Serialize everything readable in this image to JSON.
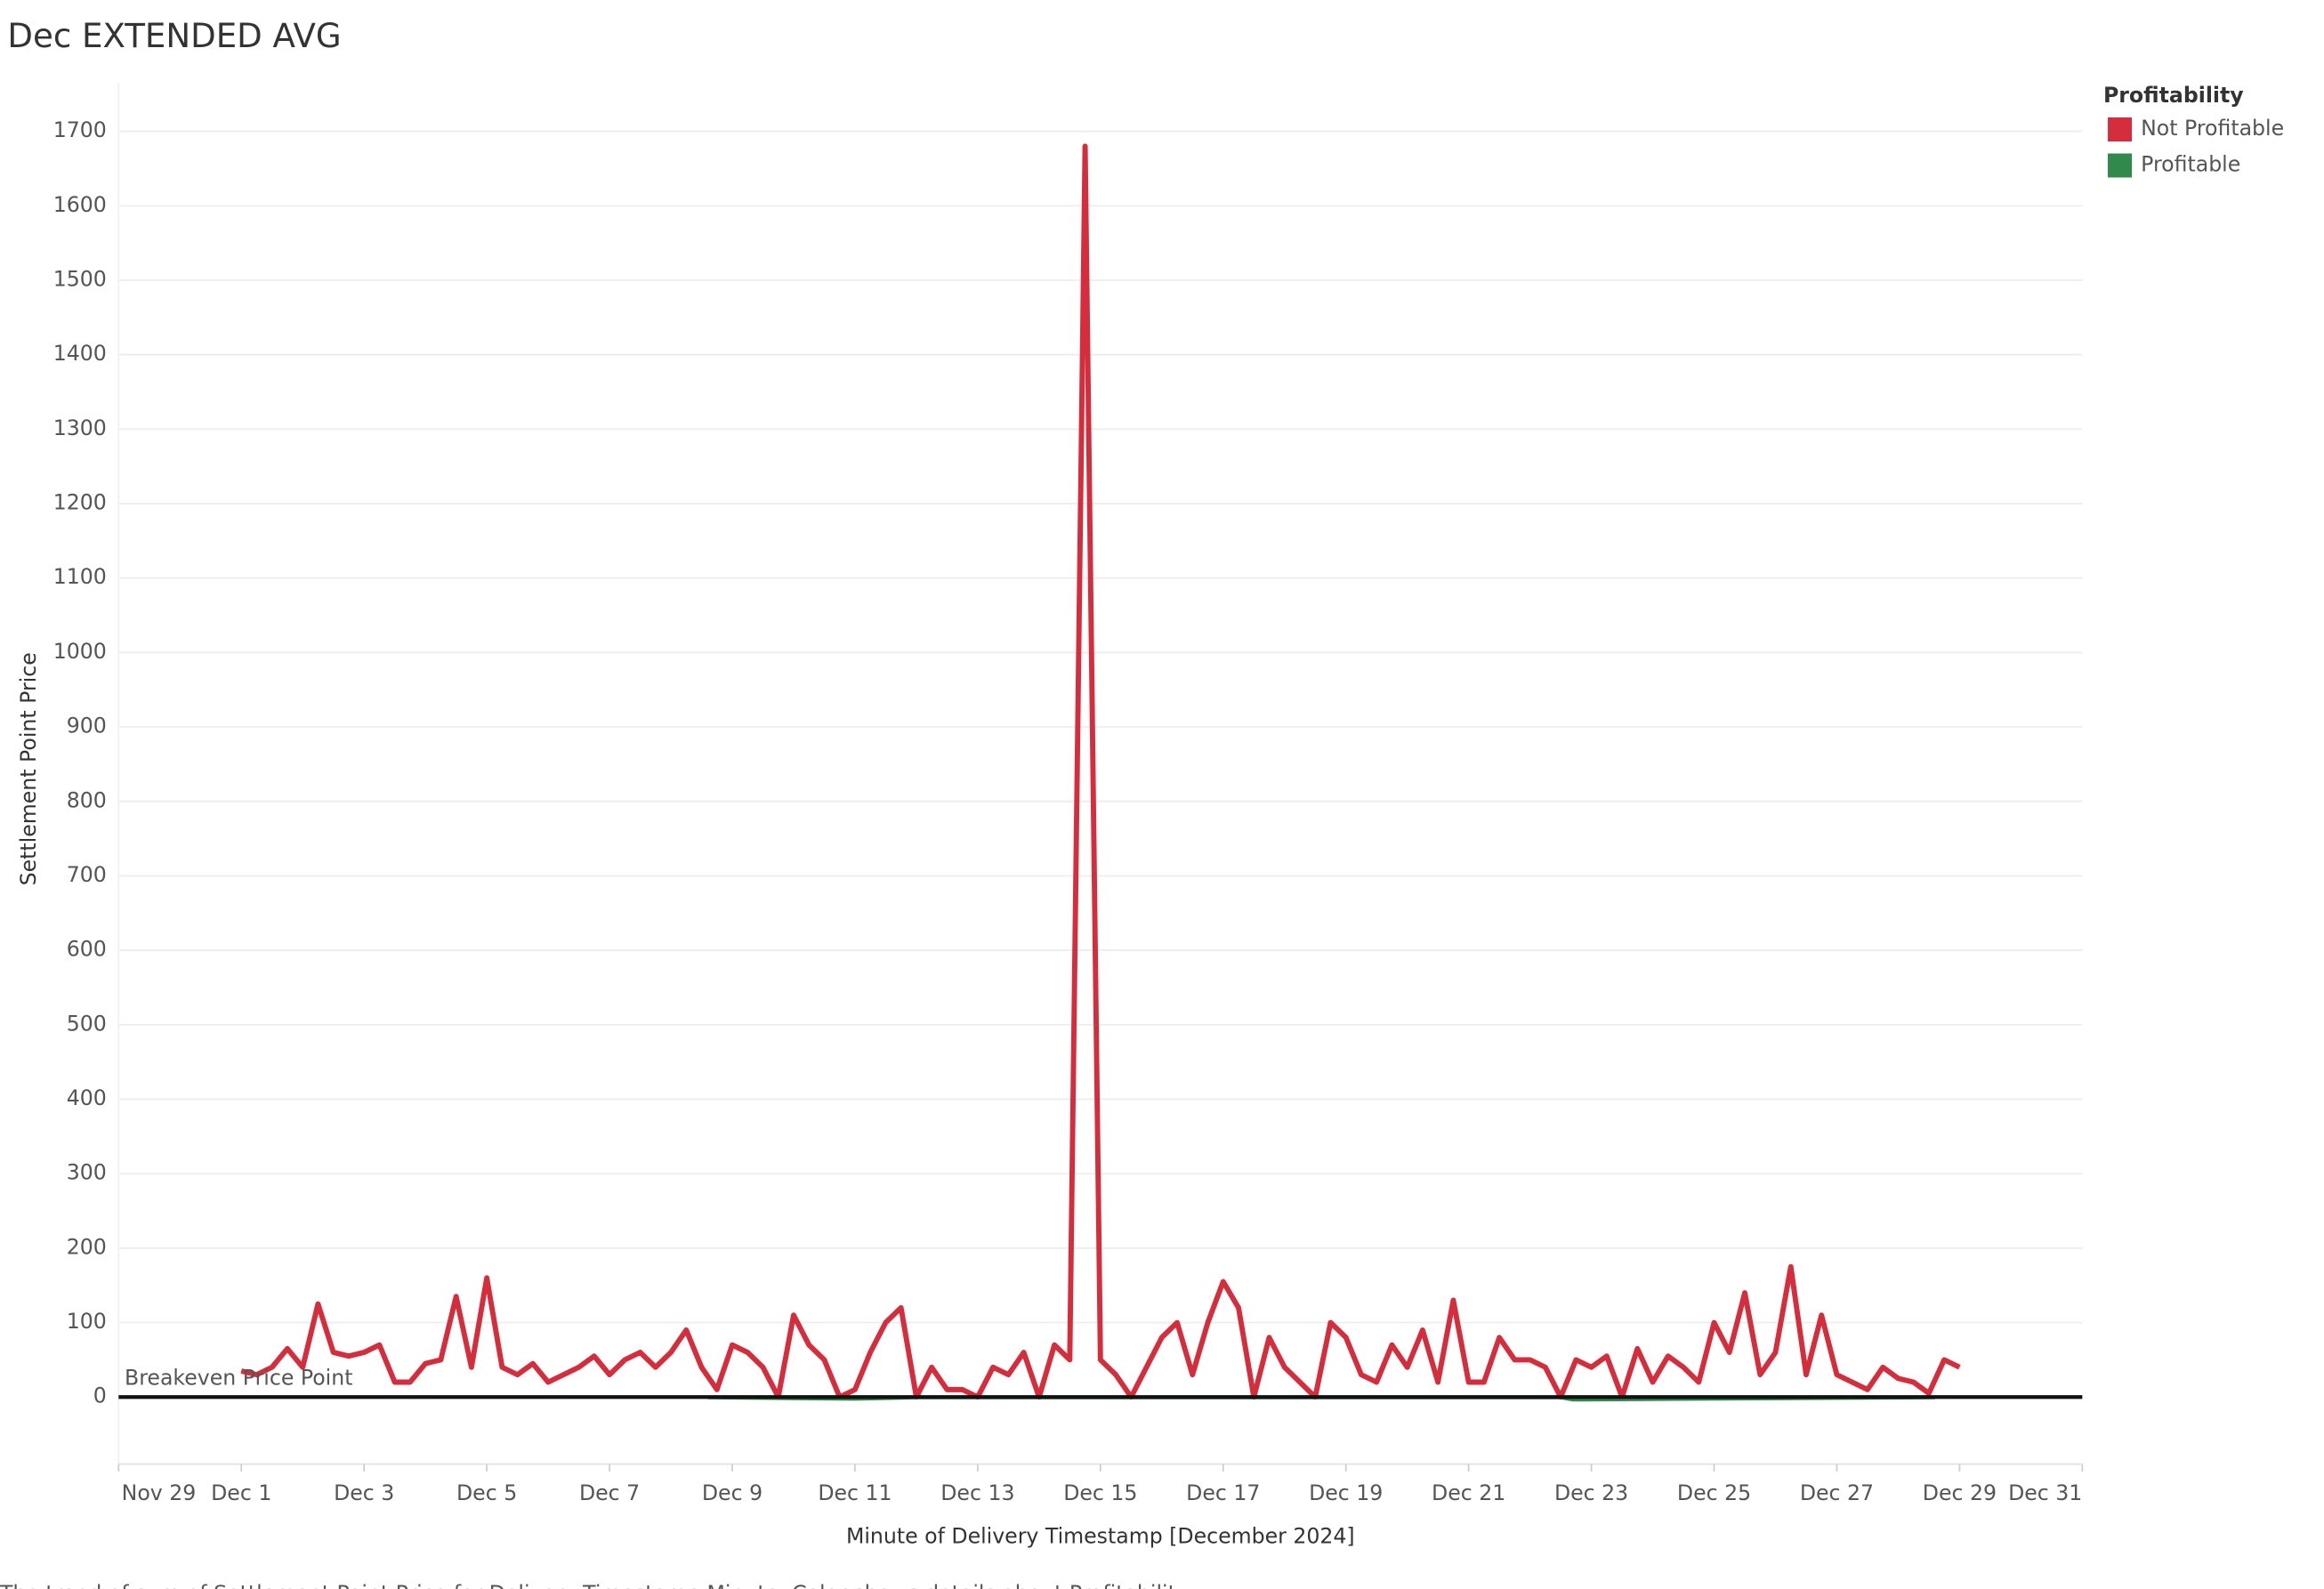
{
  "chart_data": {
    "type": "line",
    "title": "Dec EXTENDED AVG",
    "x_label": "Minute of Delivery Timestamp [December 2024]",
    "y_label": "Settlement Point Price",
    "caption": "The trend of sum of Settlement Point Price for Delivery Timestamp Minute.  Color shows details about Profitability.",
    "legend_title": "Profitability",
    "legend": "top-right",
    "grid": true,
    "xlim": [
      -1,
      31
    ],
    "ylim": [
      -90,
      1765
    ],
    "xticks": [
      {
        "value": -1,
        "label": "Nov 29"
      },
      {
        "value": 1,
        "label": "Dec 1"
      },
      {
        "value": 3,
        "label": "Dec 3"
      },
      {
        "value": 5,
        "label": "Dec 5"
      },
      {
        "value": 7,
        "label": "Dec 7"
      },
      {
        "value": 9,
        "label": "Dec 9"
      },
      {
        "value": 11,
        "label": "Dec 11"
      },
      {
        "value": 13,
        "label": "Dec 13"
      },
      {
        "value": 15,
        "label": "Dec 15"
      },
      {
        "value": 17,
        "label": "Dec 17"
      },
      {
        "value": 19,
        "label": "Dec 19"
      },
      {
        "value": 21,
        "label": "Dec 21"
      },
      {
        "value": 23,
        "label": "Dec 23"
      },
      {
        "value": 25,
        "label": "Dec 25"
      },
      {
        "value": 27,
        "label": "Dec 27"
      },
      {
        "value": 29,
        "label": "Dec 29"
      },
      {
        "value": 31,
        "label": "Dec 31"
      }
    ],
    "yticks": [
      0,
      100,
      200,
      300,
      400,
      500,
      600,
      700,
      800,
      900,
      1000,
      1100,
      1200,
      1300,
      1400,
      1500,
      1600,
      1700
    ],
    "reference_line": {
      "value": 0,
      "label": "Breakeven Price Point",
      "color": "#111111"
    },
    "series": [
      {
        "name": "Not Profitable",
        "color": "#d62d3d",
        "x": [
          1,
          1.25,
          1.5,
          1.75,
          2,
          2.25,
          2.5,
          2.75,
          3,
          3.25,
          3.5,
          3.75,
          4,
          4.25,
          4.5,
          4.75,
          5,
          5.25,
          5.5,
          5.75,
          6,
          6.25,
          6.5,
          6.75,
          7,
          7.25,
          7.5,
          7.75,
          8,
          8.25,
          8.5,
          8.75,
          9,
          9.25,
          9.5,
          9.75,
          10,
          10.25,
          10.5,
          10.75,
          11,
          11.25,
          11.5,
          11.75,
          12,
          12.25,
          12.5,
          12.75,
          13,
          13.25,
          13.5,
          13.75,
          14,
          14.25,
          14.5,
          14.75,
          15,
          15.25,
          15.5,
          15.75,
          16,
          16.25,
          16.5,
          16.75,
          17,
          17.25,
          17.5,
          17.75,
          18,
          18.25,
          18.5,
          18.75,
          19,
          19.25,
          19.5,
          19.75,
          20,
          20.25,
          20.5,
          20.75,
          21,
          21.25,
          21.5,
          21.75,
          22,
          22.25,
          22.5,
          22.75,
          23,
          23.25,
          23.5,
          23.75,
          24,
          24.25,
          24.5,
          24.75,
          25,
          25.25,
          25.5,
          25.75,
          26,
          26.25,
          26.5,
          26.75,
          27,
          27.25,
          27.5,
          27.75,
          28,
          28.25,
          28.5,
          28.75,
          29
        ],
        "values": [
          35,
          30,
          40,
          65,
          40,
          125,
          60,
          55,
          60,
          70,
          20,
          20,
          45,
          50,
          135,
          40,
          160,
          40,
          30,
          45,
          20,
          30,
          40,
          55,
          30,
          50,
          60,
          40,
          60,
          90,
          40,
          10,
          70,
          60,
          40,
          0,
          110,
          70,
          50,
          0,
          10,
          60,
          100,
          120,
          0,
          40,
          10,
          10,
          0,
          40,
          30,
          60,
          0,
          70,
          50,
          1680,
          50,
          30,
          0,
          40,
          80,
          100,
          30,
          100,
          155,
          120,
          0,
          80,
          40,
          20,
          0,
          100,
          80,
          30,
          20,
          70,
          40,
          90,
          20,
          130,
          20,
          20,
          80,
          50,
          50,
          40,
          0,
          50,
          40,
          55,
          0,
          65,
          20,
          55,
          40,
          20,
          100,
          60,
          140,
          30,
          60,
          175,
          30,
          110,
          30,
          20,
          10,
          40,
          25,
          20,
          5,
          50,
          40
        ]
      },
      {
        "name": "Profitable",
        "color": "#2f8a4c",
        "x": [
          8.6,
          11,
          12,
          22.5,
          22.7,
          28.6
        ],
        "values": [
          -1,
          -3,
          -1,
          -1,
          -4,
          -1
        ]
      }
    ]
  }
}
